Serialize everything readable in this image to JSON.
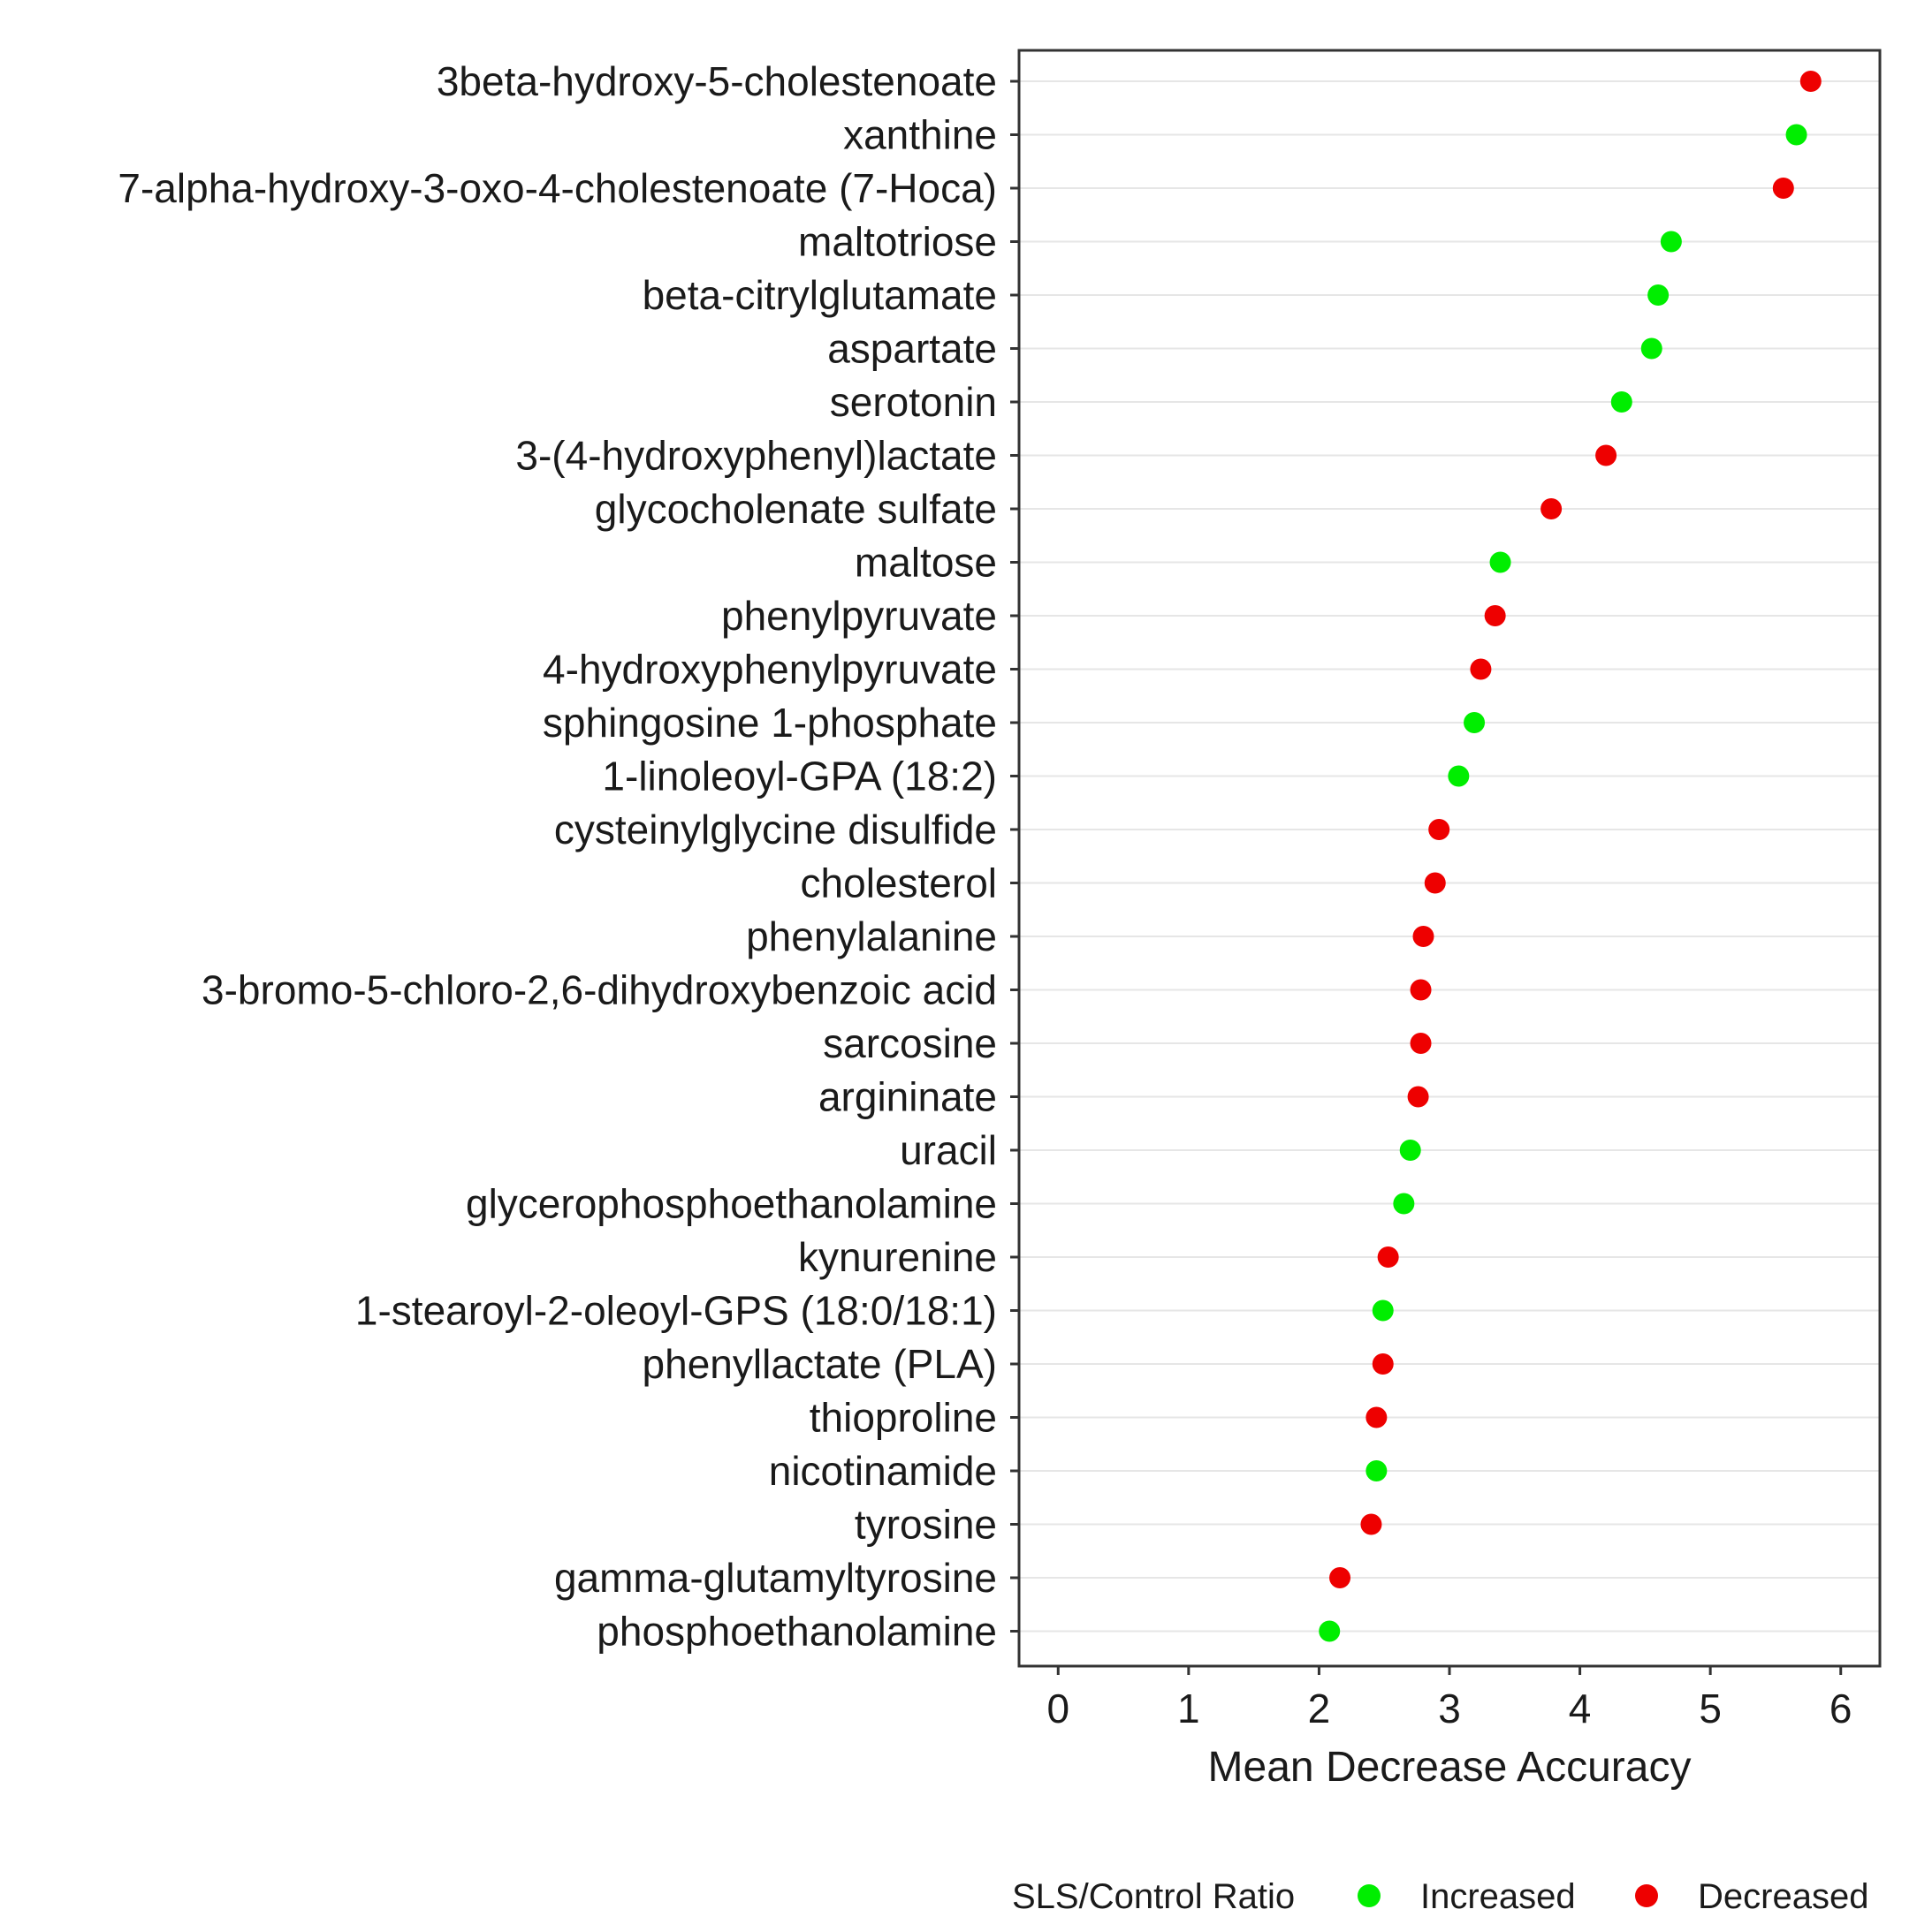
{
  "chart_data": {
    "type": "scatter",
    "orientation": "horizontal-dot-plot",
    "title": "",
    "xlabel": "Mean Decrease Accuracy",
    "ylabel": "",
    "xlim": [
      -0.3,
      6.3
    ],
    "xticks": [
      0,
      1,
      2,
      3,
      4,
      5,
      6
    ],
    "xtick_labels": [
      "0",
      "1",
      "2",
      "3",
      "4",
      "5",
      "6"
    ],
    "grid": "horizontal major lines",
    "legend": {
      "title": "SLS/Control Ratio",
      "position": "bottom",
      "entries": [
        {
          "label": "Increased",
          "color": "#00ee00"
        },
        {
          "label": "Decreased",
          "color": "#ee0000"
        }
      ]
    },
    "points": [
      {
        "metabolite": "3beta-hydroxy-5-cholestenoate",
        "value": 5.77,
        "group": "Decreased"
      },
      {
        "metabolite": "xanthine",
        "value": 5.66,
        "group": "Increased"
      },
      {
        "metabolite": "7-alpha-hydroxy-3-oxo-4-cholestenoate (7-Hoca)",
        "value": 5.56,
        "group": "Decreased"
      },
      {
        "metabolite": "maltotriose",
        "value": 4.7,
        "group": "Increased"
      },
      {
        "metabolite": "beta-citrylglutamate",
        "value": 4.6,
        "group": "Increased"
      },
      {
        "metabolite": "aspartate",
        "value": 4.55,
        "group": "Increased"
      },
      {
        "metabolite": "serotonin",
        "value": 4.32,
        "group": "Increased"
      },
      {
        "metabolite": "3-(4-hydroxyphenyl)lactate",
        "value": 4.2,
        "group": "Decreased"
      },
      {
        "metabolite": "glycocholenate sulfate",
        "value": 3.78,
        "group": "Decreased"
      },
      {
        "metabolite": "maltose",
        "value": 3.39,
        "group": "Increased"
      },
      {
        "metabolite": "phenylpyruvate",
        "value": 3.35,
        "group": "Decreased"
      },
      {
        "metabolite": "4-hydroxyphenylpyruvate",
        "value": 3.24,
        "group": "Decreased"
      },
      {
        "metabolite": "sphingosine 1-phosphate",
        "value": 3.19,
        "group": "Increased"
      },
      {
        "metabolite": "1-linoleoyl-GPA (18:2)",
        "value": 3.07,
        "group": "Increased"
      },
      {
        "metabolite": "cysteinylglycine disulfide",
        "value": 2.92,
        "group": "Decreased"
      },
      {
        "metabolite": "cholesterol",
        "value": 2.89,
        "group": "Decreased"
      },
      {
        "metabolite": "phenylalanine",
        "value": 2.8,
        "group": "Decreased"
      },
      {
        "metabolite": "3-bromo-5-chloro-2,6-dihydroxybenzoic acid",
        "value": 2.78,
        "group": "Decreased"
      },
      {
        "metabolite": "sarcosine",
        "value": 2.78,
        "group": "Decreased"
      },
      {
        "metabolite": "argininate",
        "value": 2.76,
        "group": "Decreased"
      },
      {
        "metabolite": "uracil",
        "value": 2.7,
        "group": "Increased"
      },
      {
        "metabolite": "glycerophosphoethanolamine",
        "value": 2.65,
        "group": "Increased"
      },
      {
        "metabolite": "kynurenine",
        "value": 2.53,
        "group": "Decreased"
      },
      {
        "metabolite": "1-stearoyl-2-oleoyl-GPS (18:0/18:1)",
        "value": 2.49,
        "group": "Increased"
      },
      {
        "metabolite": "phenyllactate (PLA)",
        "value": 2.49,
        "group": "Decreased"
      },
      {
        "metabolite": "thioproline",
        "value": 2.44,
        "group": "Decreased"
      },
      {
        "metabolite": "nicotinamide",
        "value": 2.44,
        "group": "Increased"
      },
      {
        "metabolite": "tyrosine",
        "value": 2.4,
        "group": "Decreased"
      },
      {
        "metabolite": "gamma-glutamyltyrosine",
        "value": 2.16,
        "group": "Decreased"
      },
      {
        "metabolite": "phosphoethanolamine",
        "value": 2.08,
        "group": "Increased"
      }
    ]
  }
}
